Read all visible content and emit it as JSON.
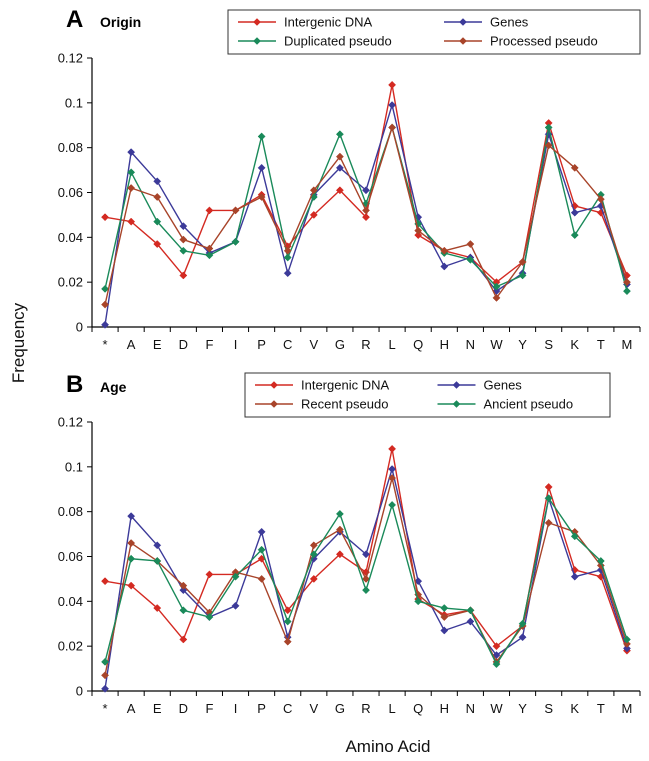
{
  "figure": {
    "ylabel": "Frequency",
    "xlabel": "Amino Acid"
  },
  "colors": {
    "intergenic": "#d42a22",
    "genes": "#3c3a99",
    "duplicated": "#1a8a5a",
    "processed": "#a8442a",
    "recent": "#a8442a",
    "ancient": "#1a8a5a"
  },
  "chart_data": [
    {
      "type": "line",
      "panel_letter": "A",
      "title": "Origin",
      "ylabel": "Frequency",
      "xlabel": "",
      "ylim": [
        0,
        0.12
      ],
      "yticks": [
        "0",
        "0.02",
        "0.04",
        "0.06",
        "0.08",
        "0.1",
        "0.12"
      ],
      "grid": false,
      "legend_position": "top",
      "categories": [
        "*",
        "A",
        "E",
        "D",
        "F",
        "I",
        "P",
        "C",
        "V",
        "G",
        "R",
        "L",
        "Q",
        "H",
        "N",
        "W",
        "Y",
        "S",
        "K",
        "T",
        "M"
      ],
      "series": [
        {
          "name": "Intergenic DNA",
          "color_key": "intergenic",
          "values": [
            0.049,
            0.047,
            0.037,
            0.023,
            0.052,
            0.052,
            0.059,
            0.036,
            0.05,
            0.061,
            0.049,
            0.108,
            0.041,
            0.034,
            0.031,
            0.02,
            0.029,
            0.091,
            0.054,
            0.051,
            0.023
          ]
        },
        {
          "name": "Genes",
          "color_key": "genes",
          "values": [
            0.001,
            0.078,
            0.065,
            0.045,
            0.033,
            0.038,
            0.071,
            0.024,
            0.059,
            0.071,
            0.061,
            0.099,
            0.049,
            0.027,
            0.031,
            0.016,
            0.024,
            0.086,
            0.051,
            0.054,
            0.019
          ]
        },
        {
          "name": "Duplicated pseudo",
          "color_key": "duplicated",
          "values": [
            0.017,
            0.069,
            0.047,
            0.034,
            0.032,
            0.038,
            0.085,
            0.031,
            0.058,
            0.086,
            0.055,
            0.089,
            0.046,
            0.033,
            0.03,
            0.018,
            0.023,
            0.089,
            0.041,
            0.059,
            0.016
          ]
        },
        {
          "name": "Processed pseudo",
          "color_key": "processed",
          "values": [
            0.01,
            0.062,
            0.058,
            0.039,
            0.035,
            0.052,
            0.058,
            0.034,
            0.061,
            0.076,
            0.052,
            0.089,
            0.043,
            0.034,
            0.037,
            0.013,
            0.029,
            0.081,
            0.071,
            0.057,
            0.02
          ]
        }
      ]
    },
    {
      "type": "line",
      "panel_letter": "B",
      "title": "Age",
      "ylabel": "Frequency",
      "xlabel": "Amino Acid",
      "ylim": [
        0,
        0.12
      ],
      "yticks": [
        "0",
        "0.02",
        "0.04",
        "0.06",
        "0.08",
        "0.1",
        "0.12"
      ],
      "grid": false,
      "legend_position": "top",
      "categories": [
        "*",
        "A",
        "E",
        "D",
        "F",
        "I",
        "P",
        "C",
        "V",
        "G",
        "R",
        "L",
        "Q",
        "H",
        "N",
        "W",
        "Y",
        "S",
        "K",
        "T",
        "M"
      ],
      "series": [
        {
          "name": "Intergenic DNA",
          "color_key": "intergenic",
          "values": [
            0.049,
            0.047,
            0.037,
            0.023,
            0.052,
            0.052,
            0.059,
            0.036,
            0.05,
            0.061,
            0.053,
            0.108,
            0.041,
            0.034,
            0.036,
            0.02,
            0.029,
            0.091,
            0.054,
            0.051,
            0.018
          ]
        },
        {
          "name": "Genes",
          "color_key": "genes",
          "values": [
            0.001,
            0.078,
            0.065,
            0.045,
            0.033,
            0.038,
            0.071,
            0.024,
            0.059,
            0.071,
            0.061,
            0.099,
            0.049,
            0.027,
            0.031,
            0.016,
            0.024,
            0.086,
            0.051,
            0.054,
            0.019
          ]
        },
        {
          "name": "Recent pseudo",
          "color_key": "recent",
          "values": [
            0.007,
            0.066,
            0.058,
            0.047,
            0.035,
            0.053,
            0.05,
            0.022,
            0.065,
            0.072,
            0.05,
            0.095,
            0.043,
            0.033,
            0.036,
            0.013,
            0.029,
            0.075,
            0.071,
            0.056,
            0.021
          ]
        },
        {
          "name": "Ancient pseudo",
          "color_key": "ancient",
          "values": [
            0.013,
            0.059,
            0.058,
            0.036,
            0.033,
            0.051,
            0.063,
            0.031,
            0.061,
            0.079,
            0.045,
            0.083,
            0.04,
            0.037,
            0.036,
            0.012,
            0.03,
            0.086,
            0.069,
            0.058,
            0.023
          ]
        }
      ]
    }
  ]
}
